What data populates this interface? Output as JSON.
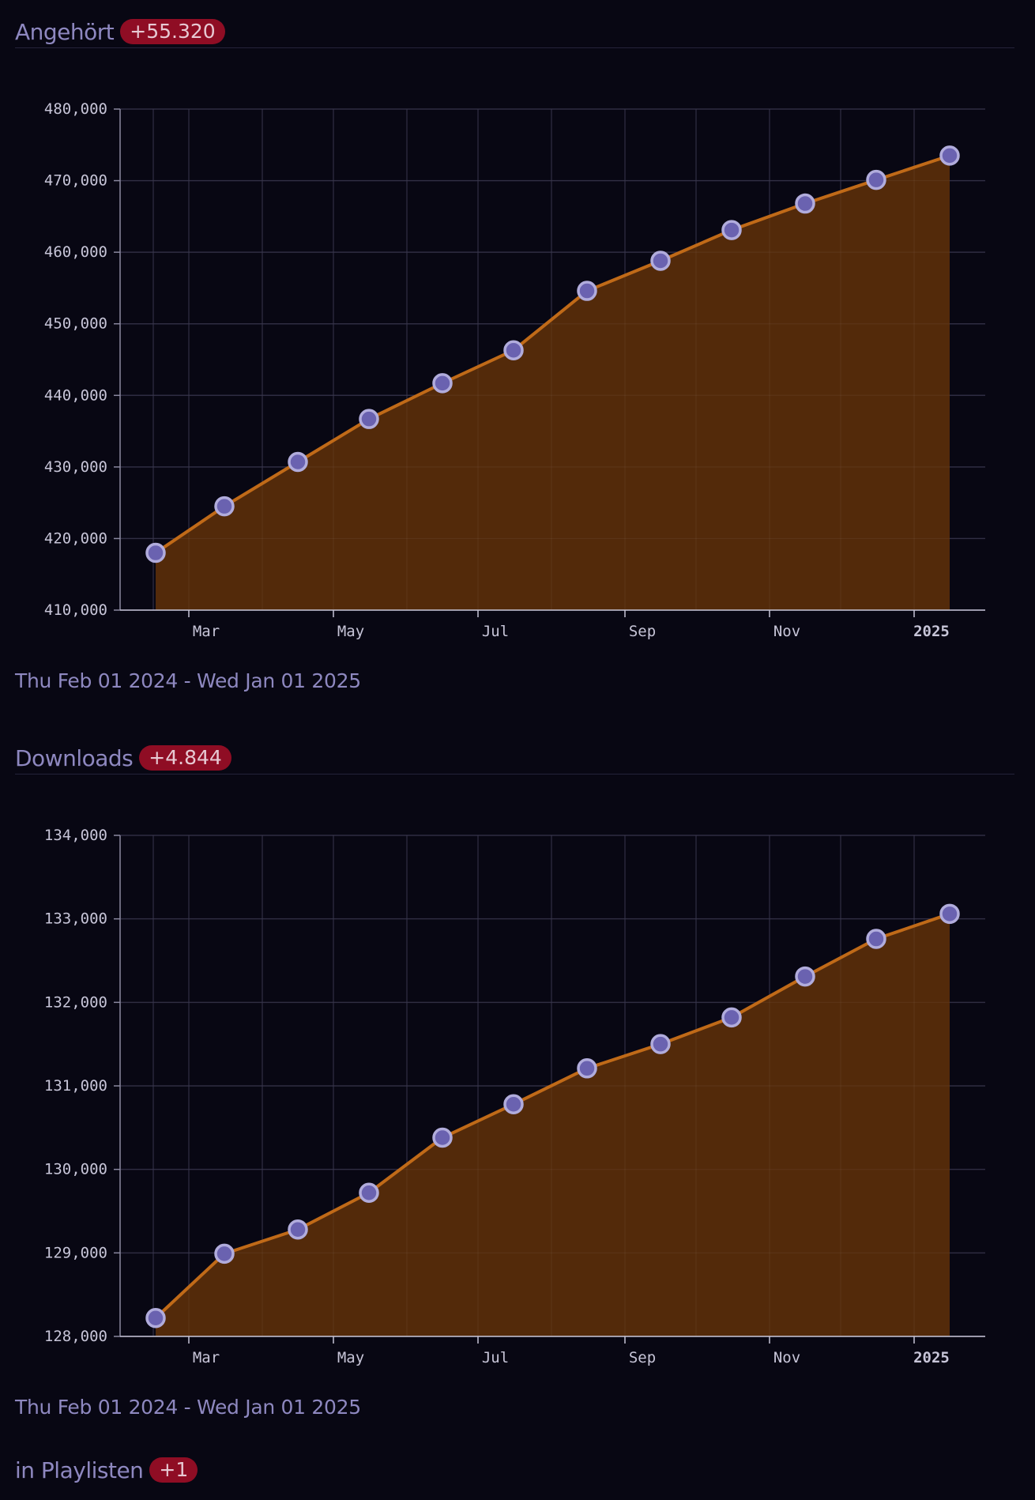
{
  "sections": [
    {
      "title": "Angehört",
      "badge": "+55.320",
      "date_range": "Thu Feb 01 2024 - Wed Jan 01 2025"
    },
    {
      "title": "Downloads",
      "badge": "+4.844",
      "date_range": "Thu Feb 01 2024 - Wed Jan 01 2025"
    },
    {
      "title": "in Playlisten",
      "badge": "+1"
    }
  ],
  "colors": {
    "background": "#080713",
    "line": "#c06a18",
    "area": "#552b0a",
    "point_fill": "#6a62b0",
    "point_stroke": "#b1acdc",
    "grid": "#26243a",
    "badge_bg": "#8f0d24"
  },
  "chart_data": [
    {
      "type": "area",
      "title": "Angehört",
      "x_ticks": [
        "Mar",
        "May",
        "Jul",
        "Sep",
        "Nov",
        "2025"
      ],
      "y_ticks": [
        "410,000",
        "420,000",
        "430,000",
        "440,000",
        "450,000",
        "460,000",
        "470,000",
        "480,000"
      ],
      "ylim": [
        410000,
        480000
      ],
      "xlim": [
        "2024-02-01",
        "2025-01-31"
      ],
      "x": [
        "2024-02-16",
        "2024-03-16",
        "2024-04-16",
        "2024-05-16",
        "2024-06-16",
        "2024-07-16",
        "2024-08-16",
        "2024-09-16",
        "2024-10-16",
        "2024-11-16",
        "2024-12-16",
        "2025-01-16"
      ],
      "values": [
        418000,
        424500,
        430700,
        436700,
        441700,
        446300,
        454600,
        458800,
        463100,
        466800,
        470100,
        473500
      ],
      "grid": true
    },
    {
      "type": "area",
      "title": "Downloads",
      "x_ticks": [
        "Mar",
        "May",
        "Jul",
        "Sep",
        "Nov",
        "2025"
      ],
      "y_ticks": [
        "128,000",
        "129,000",
        "130,000",
        "131,000",
        "132,000",
        "133,000",
        "134,000"
      ],
      "ylim": [
        128000,
        134000
      ],
      "xlim": [
        "2024-02-01",
        "2025-01-31"
      ],
      "x": [
        "2024-02-16",
        "2024-03-16",
        "2024-04-16",
        "2024-05-16",
        "2024-06-16",
        "2024-07-16",
        "2024-08-16",
        "2024-09-16",
        "2024-10-16",
        "2024-11-16",
        "2024-12-16",
        "2025-01-16"
      ],
      "values": [
        128220,
        128990,
        129280,
        129720,
        130380,
        130780,
        131210,
        131500,
        131820,
        132310,
        132760,
        133060
      ],
      "grid": true
    }
  ]
}
